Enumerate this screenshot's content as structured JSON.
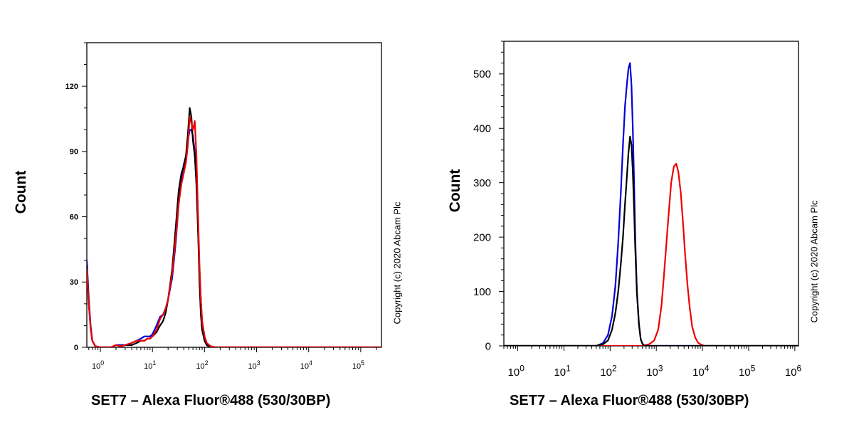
{
  "chart_data": [
    {
      "type": "line",
      "title": "",
      "xlabel": "SET7 – Alexa Fluor®488 (530/30BP)",
      "ylabel": "Count",
      "copyright": "Copyright (c) 2020 Abcam Plc",
      "x_scale": "log",
      "xlim": [
        0.55,
        250000
      ],
      "ylim": [
        0,
        140
      ],
      "y_ticks": [
        0,
        30,
        60,
        90,
        120
      ],
      "x_ticks": [
        1,
        10,
        100,
        1000,
        10000,
        100000
      ],
      "x_tick_exponents": [
        "0",
        "1",
        "2",
        "3",
        "4",
        "5"
      ],
      "grid": false,
      "series": [
        {
          "color": "#0000dd",
          "x": [
            0.55,
            0.6,
            0.65,
            0.7,
            0.8,
            1,
            1.3,
            1.6,
            2,
            2.5,
            3,
            4,
            5,
            6,
            7,
            8,
            9,
            10,
            12,
            14,
            16,
            18,
            20,
            24,
            28,
            32,
            36,
            40,
            44,
            48,
            52,
            56,
            60,
            65,
            70,
            75,
            80,
            85,
            90,
            100,
            110,
            130,
            160,
            250000
          ],
          "y": [
            40,
            22,
            10,
            3,
            0.5,
            0,
            0,
            0,
            1,
            1,
            1,
            2,
            3,
            4,
            5,
            5,
            5,
            6,
            10,
            14,
            15,
            18,
            22,
            32,
            48,
            66,
            78,
            84,
            88,
            95,
            100,
            100,
            97,
            90,
            75,
            55,
            35,
            22,
            12,
            5,
            2,
            0.5,
            0,
            0
          ]
        },
        {
          "color": "#000000",
          "x": [
            0.55,
            0.6,
            0.65,
            0.7,
            0.8,
            1,
            1.3,
            1.6,
            2,
            2.5,
            3,
            4,
            5,
            6,
            7,
            8,
            9,
            10,
            12,
            14,
            16,
            18,
            20,
            24,
            28,
            32,
            36,
            40,
            44,
            48,
            52,
            56,
            60,
            65,
            70,
            75,
            80,
            85,
            90,
            100,
            110,
            130,
            160,
            250000
          ],
          "y": [
            38,
            20,
            9,
            3,
            0.5,
            0,
            0,
            0,
            1,
            0.5,
            1,
            1,
            2,
            3,
            3,
            4,
            4,
            5,
            7,
            10,
            12,
            16,
            22,
            36,
            55,
            72,
            80,
            83,
            88,
            98,
            110,
            106,
            95,
            88,
            75,
            55,
            30,
            15,
            8,
            3,
            1,
            0,
            0,
            0
          ]
        },
        {
          "color": "#ee0000",
          "x": [
            0.55,
            0.6,
            0.65,
            0.7,
            0.8,
            1,
            1.3,
            1.6,
            2,
            2.5,
            3,
            4,
            5,
            6,
            7,
            8,
            9,
            10,
            12,
            14,
            16,
            18,
            20,
            24,
            28,
            32,
            36,
            40,
            44,
            48,
            52,
            56,
            60,
            65,
            70,
            75,
            80,
            85,
            90,
            100,
            110,
            130,
            160,
            250000
          ],
          "y": [
            36,
            20,
            9,
            3,
            0.5,
            0,
            0,
            0,
            1,
            0.5,
            1,
            2,
            3,
            3,
            3,
            4,
            4,
            5,
            8,
            13,
            15,
            18,
            22,
            34,
            50,
            66,
            75,
            80,
            85,
            93,
            106,
            103,
            100,
            104,
            88,
            62,
            38,
            22,
            12,
            5,
            2,
            0.5,
            0,
            0
          ]
        }
      ]
    },
    {
      "type": "line",
      "title": "",
      "xlabel": "SET7 – Alexa Fluor®488 (530/30BP)",
      "ylabel": "Count",
      "copyright": "Copyright (c) 2020 Abcam Plc",
      "x_scale": "log",
      "xlim": [
        0.5,
        1200000
      ],
      "ylim": [
        0,
        560
      ],
      "y_ticks": [
        0,
        100,
        200,
        300,
        400,
        500
      ],
      "x_ticks": [
        1,
        10,
        100,
        1000,
        10000,
        100000,
        1000000
      ],
      "x_tick_exponents": [
        "0",
        "1",
        "2",
        "3",
        "4",
        "5",
        "6"
      ],
      "grid": false,
      "series": [
        {
          "color": "#ee0000",
          "x": [
            0.5,
            500,
            700,
            900,
            1100,
            1300,
            1500,
            1800,
            2100,
            2400,
            2700,
            3000,
            3400,
            3800,
            4200,
            4700,
            5300,
            6000,
            7000,
            8000,
            9000,
            11000,
            1200000
          ],
          "y": [
            0,
            0,
            3,
            10,
            30,
            75,
            140,
            230,
            300,
            330,
            335,
            320,
            280,
            225,
            170,
            115,
            70,
            35,
            15,
            6,
            3,
            0,
            0
          ]
        },
        {
          "color": "#0000dd",
          "x": [
            0.5,
            50,
            70,
            90,
            110,
            130,
            150,
            170,
            190,
            210,
            230,
            250,
            270,
            290,
            310,
            330,
            350,
            380,
            420,
            460,
            500,
            550,
            1200000
          ],
          "y": [
            0,
            0,
            5,
            20,
            55,
            110,
            190,
            280,
            370,
            440,
            480,
            510,
            520,
            480,
            400,
            300,
            200,
            100,
            40,
            12,
            4,
            0,
            0
          ]
        },
        {
          "color": "#000000",
          "x": [
            0.5,
            50,
            70,
            90,
            110,
            130,
            150,
            170,
            190,
            210,
            230,
            250,
            270,
            290,
            310,
            330,
            350,
            380,
            420,
            460,
            500,
            550,
            1200000
          ],
          "y": [
            0,
            0,
            3,
            10,
            30,
            60,
            100,
            150,
            200,
            260,
            310,
            355,
            385,
            370,
            320,
            250,
            180,
            100,
            40,
            12,
            4,
            0,
            0
          ]
        }
      ]
    }
  ]
}
